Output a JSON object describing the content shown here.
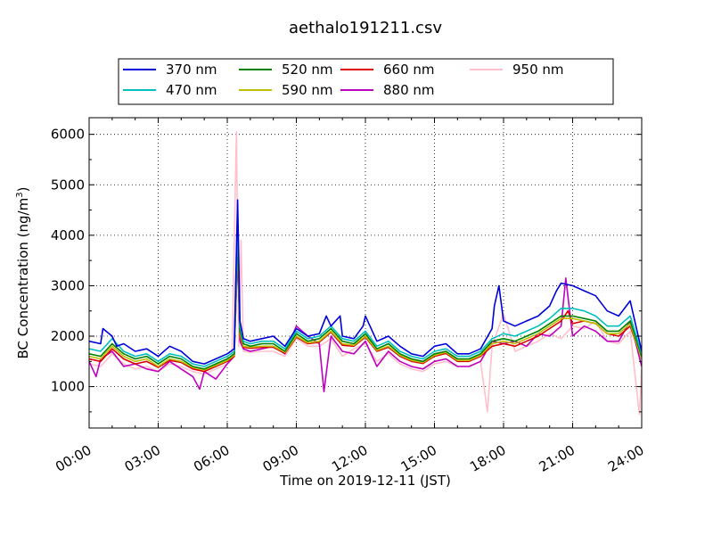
{
  "chart_data": {
    "type": "line",
    "title": "aethalo191211.csv",
    "xlabel": "Time on 2019-12-11 (JST)",
    "ylabel": "BC Concentration (ng/m³)",
    "ylabel_parts": {
      "main": "BC Concentration (ng/m",
      "sup": "3",
      "close": ")"
    },
    "xlim": [
      0,
      24
    ],
    "ylim": [
      180,
      6330
    ],
    "xticks": [
      0,
      3,
      6,
      9,
      12,
      15,
      18,
      21,
      24
    ],
    "xtick_labels": [
      "00:00",
      "03:00",
      "06:00",
      "09:00",
      "12:00",
      "15:00",
      "18:00",
      "21:00",
      "24:00"
    ],
    "yticks": [
      1000,
      2000,
      3000,
      4000,
      5000,
      6000
    ],
    "ytick_labels": [
      "1000",
      "2000",
      "3000",
      "4000",
      "5000",
      "6000"
    ],
    "grid": true,
    "legend_placement": "top-center-outside",
    "legend_columns": 4,
    "series": [
      {
        "name": "370 nm",
        "color": "#0000dd",
        "x": [
          0.0,
          0.5,
          0.6,
          1.0,
          1.2,
          1.5,
          2.0,
          2.5,
          3.0,
          3.5,
          4.0,
          4.5,
          5.0,
          5.5,
          6.0,
          6.3,
          6.45,
          6.55,
          6.7,
          7.0,
          7.5,
          8.0,
          8.5,
          9.0,
          9.5,
          10.0,
          10.3,
          10.5,
          10.9,
          11.0,
          11.5,
          11.9,
          12.0,
          12.5,
          13.0,
          13.5,
          14.0,
          14.5,
          15.0,
          15.5,
          16.0,
          16.5,
          17.0,
          17.5,
          17.6,
          17.8,
          18.0,
          18.5,
          19.0,
          19.5,
          20.0,
          20.3,
          20.5,
          21.0,
          21.5,
          22.0,
          22.5,
          23.0,
          23.5,
          24.0
        ],
        "y": [
          1900,
          1850,
          2150,
          2000,
          1800,
          1850,
          1700,
          1750,
          1600,
          1800,
          1700,
          1500,
          1450,
          1550,
          1650,
          1750,
          4700,
          2300,
          1950,
          1900,
          1950,
          2000,
          1800,
          2150,
          2000,
          2050,
          2400,
          2200,
          2400,
          2000,
          1950,
          2200,
          2400,
          1900,
          2000,
          1800,
          1650,
          1600,
          1800,
          1850,
          1650,
          1650,
          1750,
          2150,
          2600,
          3000,
          2300,
          2200,
          2300,
          2400,
          2600,
          2900,
          3050,
          3000,
          2900,
          2800,
          2500,
          2400,
          2700,
          1700
        ]
      },
      {
        "name": "470 nm",
        "color": "#00bfbf",
        "x": [
          0.0,
          0.5,
          1.0,
          1.5,
          2.0,
          2.5,
          3.0,
          3.5,
          4.0,
          4.5,
          5.0,
          5.5,
          6.0,
          6.3,
          6.45,
          6.55,
          6.7,
          7.0,
          7.5,
          8.0,
          8.5,
          9.0,
          9.5,
          10.0,
          10.5,
          11.0,
          11.5,
          12.0,
          12.5,
          13.0,
          13.5,
          14.0,
          14.5,
          15.0,
          15.5,
          16.0,
          16.5,
          17.0,
          17.5,
          18.0,
          18.5,
          19.0,
          19.5,
          20.0,
          20.5,
          21.0,
          21.5,
          22.0,
          22.5,
          23.0,
          23.5,
          24.0
        ],
        "y": [
          1750,
          1700,
          1950,
          1700,
          1600,
          1650,
          1500,
          1650,
          1600,
          1450,
          1400,
          1500,
          1600,
          1700,
          4400,
          2200,
          1900,
          1850,
          1900,
          1900,
          1750,
          2100,
          1950,
          2000,
          2200,
          1950,
          1900,
          2100,
          1800,
          1900,
          1700,
          1600,
          1550,
          1700,
          1750,
          1600,
          1600,
          1700,
          1950,
          2050,
          2000,
          2100,
          2200,
          2350,
          2550,
          2550,
          2500,
          2400,
          2200,
          2200,
          2400,
          1650
        ]
      },
      {
        "name": "520 nm",
        "color": "#008000",
        "x": [
          0.0,
          0.5,
          1.0,
          1.5,
          2.0,
          2.5,
          3.0,
          3.5,
          4.0,
          4.5,
          5.0,
          5.5,
          6.0,
          6.3,
          6.45,
          6.55,
          6.7,
          7.0,
          7.5,
          8.0,
          8.5,
          9.0,
          9.5,
          10.0,
          10.5,
          11.0,
          11.5,
          12.0,
          12.5,
          13.0,
          13.5,
          14.0,
          14.5,
          15.0,
          15.5,
          16.0,
          16.5,
          17.0,
          17.5,
          18.0,
          18.5,
          19.0,
          19.5,
          20.0,
          20.5,
          21.0,
          21.5,
          22.0,
          22.5,
          23.0,
          23.5,
          24.0
        ],
        "y": [
          1650,
          1600,
          1850,
          1650,
          1550,
          1600,
          1450,
          1600,
          1550,
          1400,
          1350,
          1450,
          1550,
          1650,
          4100,
          2100,
          1850,
          1800,
          1850,
          1850,
          1700,
          2050,
          1900,
          1950,
          2150,
          1900,
          1850,
          2050,
          1750,
          1850,
          1650,
          1550,
          1500,
          1650,
          1700,
          1550,
          1550,
          1650,
          1900,
          1950,
          1900,
          2000,
          2100,
          2250,
          2400,
          2400,
          2350,
          2300,
          2100,
          2100,
          2300,
          1600
        ]
      },
      {
        "name": "590 nm",
        "color": "#bfbf00",
        "x": [
          0.0,
          0.5,
          1.0,
          1.5,
          2.0,
          2.5,
          3.0,
          3.5,
          4.0,
          4.5,
          5.0,
          5.5,
          6.0,
          6.3,
          6.45,
          6.55,
          6.7,
          7.0,
          7.5,
          8.0,
          8.5,
          9.0,
          9.5,
          10.0,
          10.5,
          11.0,
          11.5,
          12.0,
          12.5,
          13.0,
          13.5,
          14.0,
          14.5,
          15.0,
          15.5,
          16.0,
          16.5,
          17.0,
          17.5,
          18.0,
          18.5,
          19.0,
          19.5,
          20.0,
          20.5,
          21.0,
          21.5,
          22.0,
          22.5,
          23.0,
          23.5,
          24.0
        ],
        "y": [
          1600,
          1550,
          1800,
          1600,
          1500,
          1550,
          1400,
          1550,
          1500,
          1380,
          1330,
          1420,
          1520,
          1620,
          3900,
          2050,
          1800,
          1780,
          1800,
          1800,
          1680,
          2000,
          1870,
          1900,
          2100,
          1850,
          1820,
          2000,
          1720,
          1800,
          1620,
          1520,
          1480,
          1620,
          1680,
          1520,
          1520,
          1620,
          1850,
          1900,
          1850,
          1950,
          2050,
          2200,
          2350,
          2350,
          2300,
          2250,
          2050,
          2050,
          2250,
          1550
        ]
      },
      {
        "name": "660 nm",
        "color": "#dd0000",
        "x": [
          0.0,
          0.5,
          1.0,
          1.5,
          2.0,
          2.5,
          3.0,
          3.5,
          4.0,
          4.5,
          5.0,
          5.5,
          6.0,
          6.3,
          6.45,
          6.55,
          6.7,
          7.0,
          7.5,
          8.0,
          8.5,
          9.0,
          9.5,
          10.0,
          10.5,
          11.0,
          11.5,
          12.0,
          12.5,
          13.0,
          13.5,
          14.0,
          14.5,
          15.0,
          15.5,
          16.0,
          16.5,
          17.0,
          17.5,
          18.0,
          18.5,
          19.0,
          19.5,
          20.0,
          20.5,
          20.8,
          21.0,
          21.5,
          22.0,
          22.5,
          23.0,
          23.5,
          24.0
        ],
        "y": [
          1550,
          1500,
          1750,
          1550,
          1450,
          1500,
          1380,
          1520,
          1480,
          1350,
          1300,
          1400,
          1500,
          1600,
          3800,
          2000,
          1780,
          1760,
          1780,
          1780,
          1660,
          1980,
          1850,
          1880,
          2080,
          1820,
          1800,
          1980,
          1700,
          1780,
          1600,
          1500,
          1460,
          1600,
          1660,
          1500,
          1500,
          1600,
          1800,
          1850,
          1800,
          1900,
          2000,
          2150,
          2300,
          2500,
          2250,
          2300,
          2250,
          2050,
          2000,
          2200,
          1550
        ]
      },
      {
        "name": "880 nm",
        "color": "#bf00bf",
        "x": [
          0.0,
          0.3,
          0.5,
          1.0,
          1.5,
          2.0,
          2.5,
          3.0,
          3.5,
          4.0,
          4.5,
          4.8,
          5.0,
          5.5,
          6.0,
          6.3,
          6.45,
          6.55,
          6.7,
          7.0,
          7.5,
          8.0,
          8.5,
          9.0,
          9.5,
          10.0,
          10.2,
          10.5,
          11.0,
          11.5,
          12.0,
          12.5,
          13.0,
          13.5,
          14.0,
          14.5,
          15.0,
          15.5,
          16.0,
          16.5,
          17.0,
          17.5,
          18.0,
          18.5,
          19.0,
          19.5,
          20.0,
          20.5,
          20.7,
          21.0,
          21.5,
          22.0,
          22.5,
          23.0,
          23.5,
          24.0
        ],
        "y": [
          1500,
          1200,
          1550,
          1700,
          1400,
          1450,
          1350,
          1300,
          1500,
          1350,
          1200,
          950,
          1300,
          1150,
          1450,
          1600,
          3700,
          1900,
          1750,
          1700,
          1750,
          1800,
          1650,
          2200,
          2000,
          1850,
          900,
          2000,
          1700,
          1650,
          1900,
          1400,
          1700,
          1500,
          1400,
          1350,
          1500,
          1550,
          1400,
          1400,
          1500,
          1900,
          1850,
          1900,
          1800,
          2050,
          2000,
          2200,
          3150,
          2000,
          2200,
          2100,
          1900,
          1900,
          2300,
          1400
        ]
      },
      {
        "name": "950 nm",
        "color": "#ffc0cb",
        "x": [
          0.0,
          0.5,
          1.0,
          1.5,
          2.0,
          2.5,
          3.0,
          3.5,
          4.0,
          4.5,
          5.0,
          5.5,
          6.0,
          6.2,
          6.4,
          6.5,
          6.6,
          6.7,
          7.0,
          7.5,
          8.0,
          8.5,
          9.0,
          9.5,
          10.0,
          10.5,
          11.0,
          11.5,
          12.0,
          12.5,
          13.0,
          13.5,
          14.0,
          14.5,
          15.0,
          15.5,
          16.0,
          16.5,
          17.0,
          17.3,
          17.5,
          18.0,
          18.5,
          19.0,
          19.5,
          20.0,
          20.5,
          21.0,
          21.5,
          22.0,
          22.5,
          23.0,
          23.5,
          23.9,
          24.0
        ],
        "y": [
          1450,
          1400,
          1650,
          1450,
          1350,
          1400,
          1300,
          1450,
          1400,
          1300,
          1250,
          1350,
          1450,
          1550,
          6050,
          1800,
          3900,
          1700,
          1680,
          1700,
          1700,
          1600,
          1950,
          1800,
          1800,
          1950,
          1600,
          1750,
          1850,
          1500,
          1650,
          1450,
          1350,
          1300,
          1450,
          1500,
          1400,
          1400,
          1500,
          500,
          1800,
          2450,
          1700,
          1800,
          1900,
          2050,
          1950,
          2200,
          2150,
          2300,
          1900,
          1850,
          2100,
          450,
          1350
        ]
      }
    ]
  }
}
